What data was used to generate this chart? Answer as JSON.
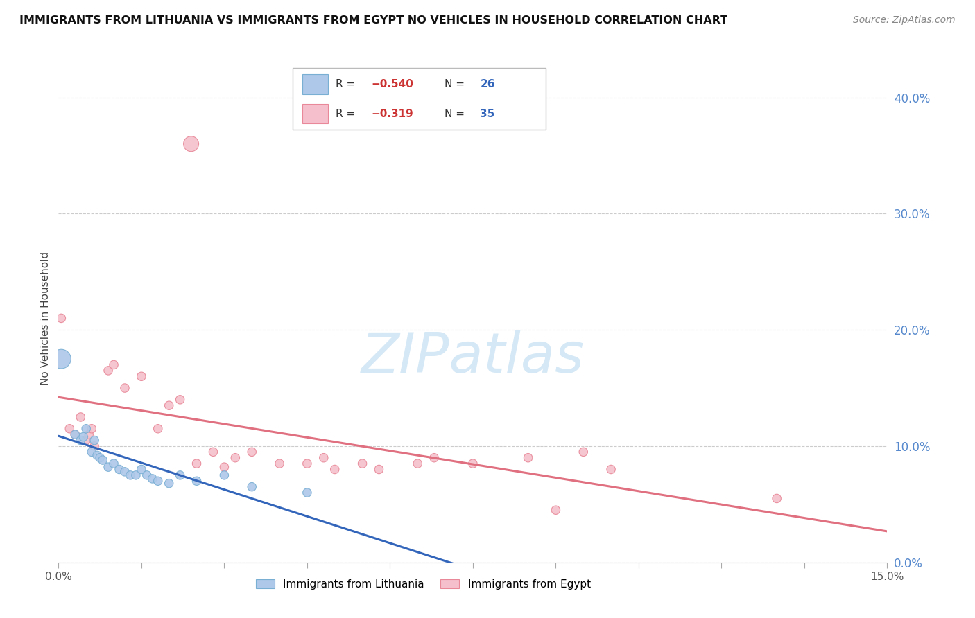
{
  "title": "IMMIGRANTS FROM LITHUANIA VS IMMIGRANTS FROM EGYPT NO VEHICLES IN HOUSEHOLD CORRELATION CHART",
  "source": "Source: ZipAtlas.com",
  "ylabel": "No Vehicles in Household",
  "xlim": [
    0.0,
    15.0
  ],
  "ylim": [
    0.0,
    42.0
  ],
  "yticks": [
    0,
    10.0,
    20.0,
    30.0,
    40.0
  ],
  "xtick_positions": [
    0.0,
    1.5,
    3.0,
    4.5,
    6.0,
    7.5,
    9.0,
    10.5,
    12.0,
    13.5,
    15.0
  ],
  "lithuania_color": "#adc8e8",
  "lithuania_edge_color": "#7aafd4",
  "egypt_color": "#f5c0cb",
  "egypt_edge_color": "#e88898",
  "regression_lith_color": "#3366bb",
  "regression_egypt_color": "#e07080",
  "watermark_color": "#d5e8f5",
  "lithuania_points": [
    [
      0.05,
      17.5
    ],
    [
      0.3,
      11.0
    ],
    [
      0.4,
      10.5
    ],
    [
      0.45,
      10.8
    ],
    [
      0.5,
      11.5
    ],
    [
      0.6,
      9.5
    ],
    [
      0.65,
      10.5
    ],
    [
      0.7,
      9.2
    ],
    [
      0.75,
      9.0
    ],
    [
      0.8,
      8.8
    ],
    [
      0.9,
      8.2
    ],
    [
      1.0,
      8.5
    ],
    [
      1.1,
      8.0
    ],
    [
      1.2,
      7.8
    ],
    [
      1.3,
      7.5
    ],
    [
      1.4,
      7.5
    ],
    [
      1.5,
      8.0
    ],
    [
      1.6,
      7.5
    ],
    [
      1.7,
      7.2
    ],
    [
      1.8,
      7.0
    ],
    [
      2.0,
      6.8
    ],
    [
      2.2,
      7.5
    ],
    [
      2.5,
      7.0
    ],
    [
      3.0,
      7.5
    ],
    [
      3.5,
      6.5
    ],
    [
      4.5,
      6.0
    ]
  ],
  "lith_sizes": [
    400,
    80,
    80,
    80,
    80,
    80,
    80,
    80,
    80,
    80,
    80,
    80,
    80,
    80,
    80,
    80,
    80,
    80,
    80,
    80,
    80,
    80,
    80,
    80,
    80,
    80
  ],
  "egypt_points": [
    [
      0.05,
      21.0
    ],
    [
      0.2,
      11.5
    ],
    [
      0.3,
      11.0
    ],
    [
      0.4,
      12.5
    ],
    [
      0.5,
      10.5
    ],
    [
      0.55,
      11.0
    ],
    [
      0.6,
      11.5
    ],
    [
      0.65,
      10.0
    ],
    [
      0.9,
      16.5
    ],
    [
      1.0,
      17.0
    ],
    [
      1.2,
      15.0
    ],
    [
      1.5,
      16.0
    ],
    [
      1.8,
      11.5
    ],
    [
      2.0,
      13.5
    ],
    [
      2.2,
      14.0
    ],
    [
      2.4,
      36.0
    ],
    [
      2.5,
      8.5
    ],
    [
      2.8,
      9.5
    ],
    [
      3.0,
      8.2
    ],
    [
      3.2,
      9.0
    ],
    [
      3.5,
      9.5
    ],
    [
      4.0,
      8.5
    ],
    [
      4.5,
      8.5
    ],
    [
      4.8,
      9.0
    ],
    [
      5.0,
      8.0
    ],
    [
      5.5,
      8.5
    ],
    [
      5.8,
      8.0
    ],
    [
      6.5,
      8.5
    ],
    [
      6.8,
      9.0
    ],
    [
      7.5,
      8.5
    ],
    [
      8.5,
      9.0
    ],
    [
      9.0,
      4.5
    ],
    [
      9.5,
      9.5
    ],
    [
      10.0,
      8.0
    ],
    [
      13.0,
      5.5
    ]
  ],
  "egypt_sizes": [
    80,
    80,
    80,
    80,
    80,
    80,
    80,
    80,
    80,
    80,
    80,
    80,
    80,
    80,
    80,
    250,
    80,
    80,
    80,
    80,
    80,
    80,
    80,
    80,
    80,
    80,
    80,
    80,
    80,
    80,
    80,
    80,
    80,
    80,
    80
  ],
  "lith_reg": [
    0.0,
    9.2,
    4.5,
    0.0
  ],
  "egypt_reg": [
    0.0,
    13.0,
    15.0,
    -0.5
  ]
}
